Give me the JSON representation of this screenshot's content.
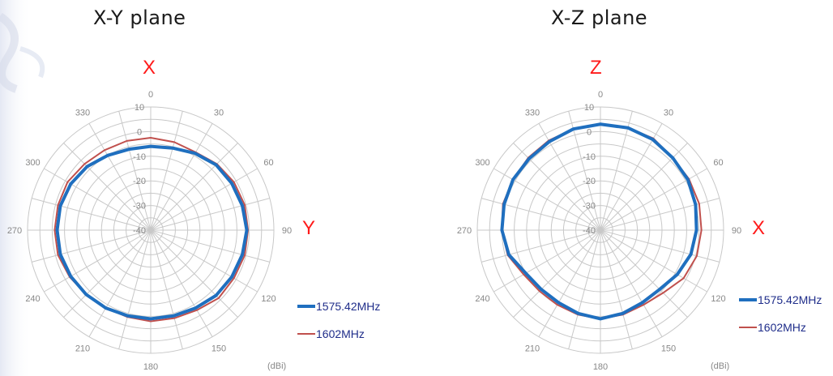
{
  "page": {
    "titles": [
      "X-Y plane",
      "X-Z plane"
    ],
    "axis_letters": {
      "left_top": "X",
      "left_right": "Y",
      "right_top": "Z",
      "right_right": "X"
    },
    "unit_label": "(dBi)"
  },
  "colors": {
    "series1": "#1f6fbf",
    "series2": "#c0504d",
    "grid": "#c8c8c8",
    "tick": "#888888",
    "axis_letter": "#ff1a1a"
  },
  "chart_data": [
    {
      "type": "radar",
      "title": "X-Y plane",
      "angle_labels": [
        "0",
        "30",
        "60",
        "90",
        "120",
        "150",
        "180",
        "210",
        "240",
        "270",
        "300",
        "330"
      ],
      "radial_ticks": [
        "10",
        "0",
        "-10",
        "-20",
        "-30",
        "-40"
      ],
      "rlim": [
        -40,
        10
      ],
      "unit": "(dBi)",
      "theta": [
        0,
        15,
        30,
        45,
        60,
        75,
        90,
        105,
        120,
        135,
        150,
        165,
        180,
        195,
        210,
        225,
        240,
        255,
        270,
        285,
        300,
        315,
        330,
        345
      ],
      "series": [
        {
          "name": "1575.42MHz",
          "values": [
            -6,
            -5.5,
            -4,
            -2.5,
            -2,
            -1.5,
            -1,
            -1.5,
            -2,
            -2.5,
            -3.5,
            -4,
            -4,
            -4,
            -3.5,
            -3,
            -2.5,
            -2,
            -2,
            -2,
            -2.5,
            -3.5,
            -5,
            -6
          ]
        },
        {
          "name": "1602MHz",
          "values": [
            -2.5,
            -3,
            -3.5,
            -2,
            -1,
            -0.5,
            -0.5,
            -0.5,
            -1,
            -1,
            -2.5,
            -3,
            -3,
            -3.5,
            -3.5,
            -3,
            -2,
            -1,
            -1,
            -1,
            -1,
            -2,
            -2.5,
            -2.5
          ]
        }
      ]
    },
    {
      "type": "radar",
      "title": "X-Z plane",
      "angle_labels": [
        "0",
        "30",
        "60",
        "90",
        "120",
        "150",
        "180",
        "210",
        "240",
        "270",
        "300",
        "330"
      ],
      "radial_ticks": [
        "10",
        "0",
        "-10",
        "-20",
        "-30",
        "-40"
      ],
      "rlim": [
        -40,
        10
      ],
      "unit": "(dBi)",
      "theta": [
        0,
        15,
        30,
        45,
        60,
        75,
        90,
        105,
        120,
        135,
        150,
        165,
        180,
        195,
        210,
        225,
        240,
        255,
        270,
        285,
        300,
        315,
        330,
        345
      ],
      "series": [
        {
          "name": "1575.42MHz",
          "values": [
            3,
            3,
            2.5,
            1.5,
            1,
            0,
            -1,
            -2,
            -4,
            -6,
            -6,
            -5,
            -4,
            -5,
            -6,
            -6,
            -5,
            -1.5,
            0,
            0.5,
            1,
            1,
            1.5,
            2.5
          ]
        },
        {
          "name": "1602MHz",
          "values": [
            3,
            3,
            3,
            1.5,
            1.5,
            1.5,
            1,
            0.5,
            -1,
            -4,
            -5,
            -4.5,
            -4,
            -4.5,
            -5,
            -5,
            -4,
            -1,
            0,
            1,
            1,
            1.5,
            2,
            2.5
          ]
        }
      ]
    }
  ]
}
